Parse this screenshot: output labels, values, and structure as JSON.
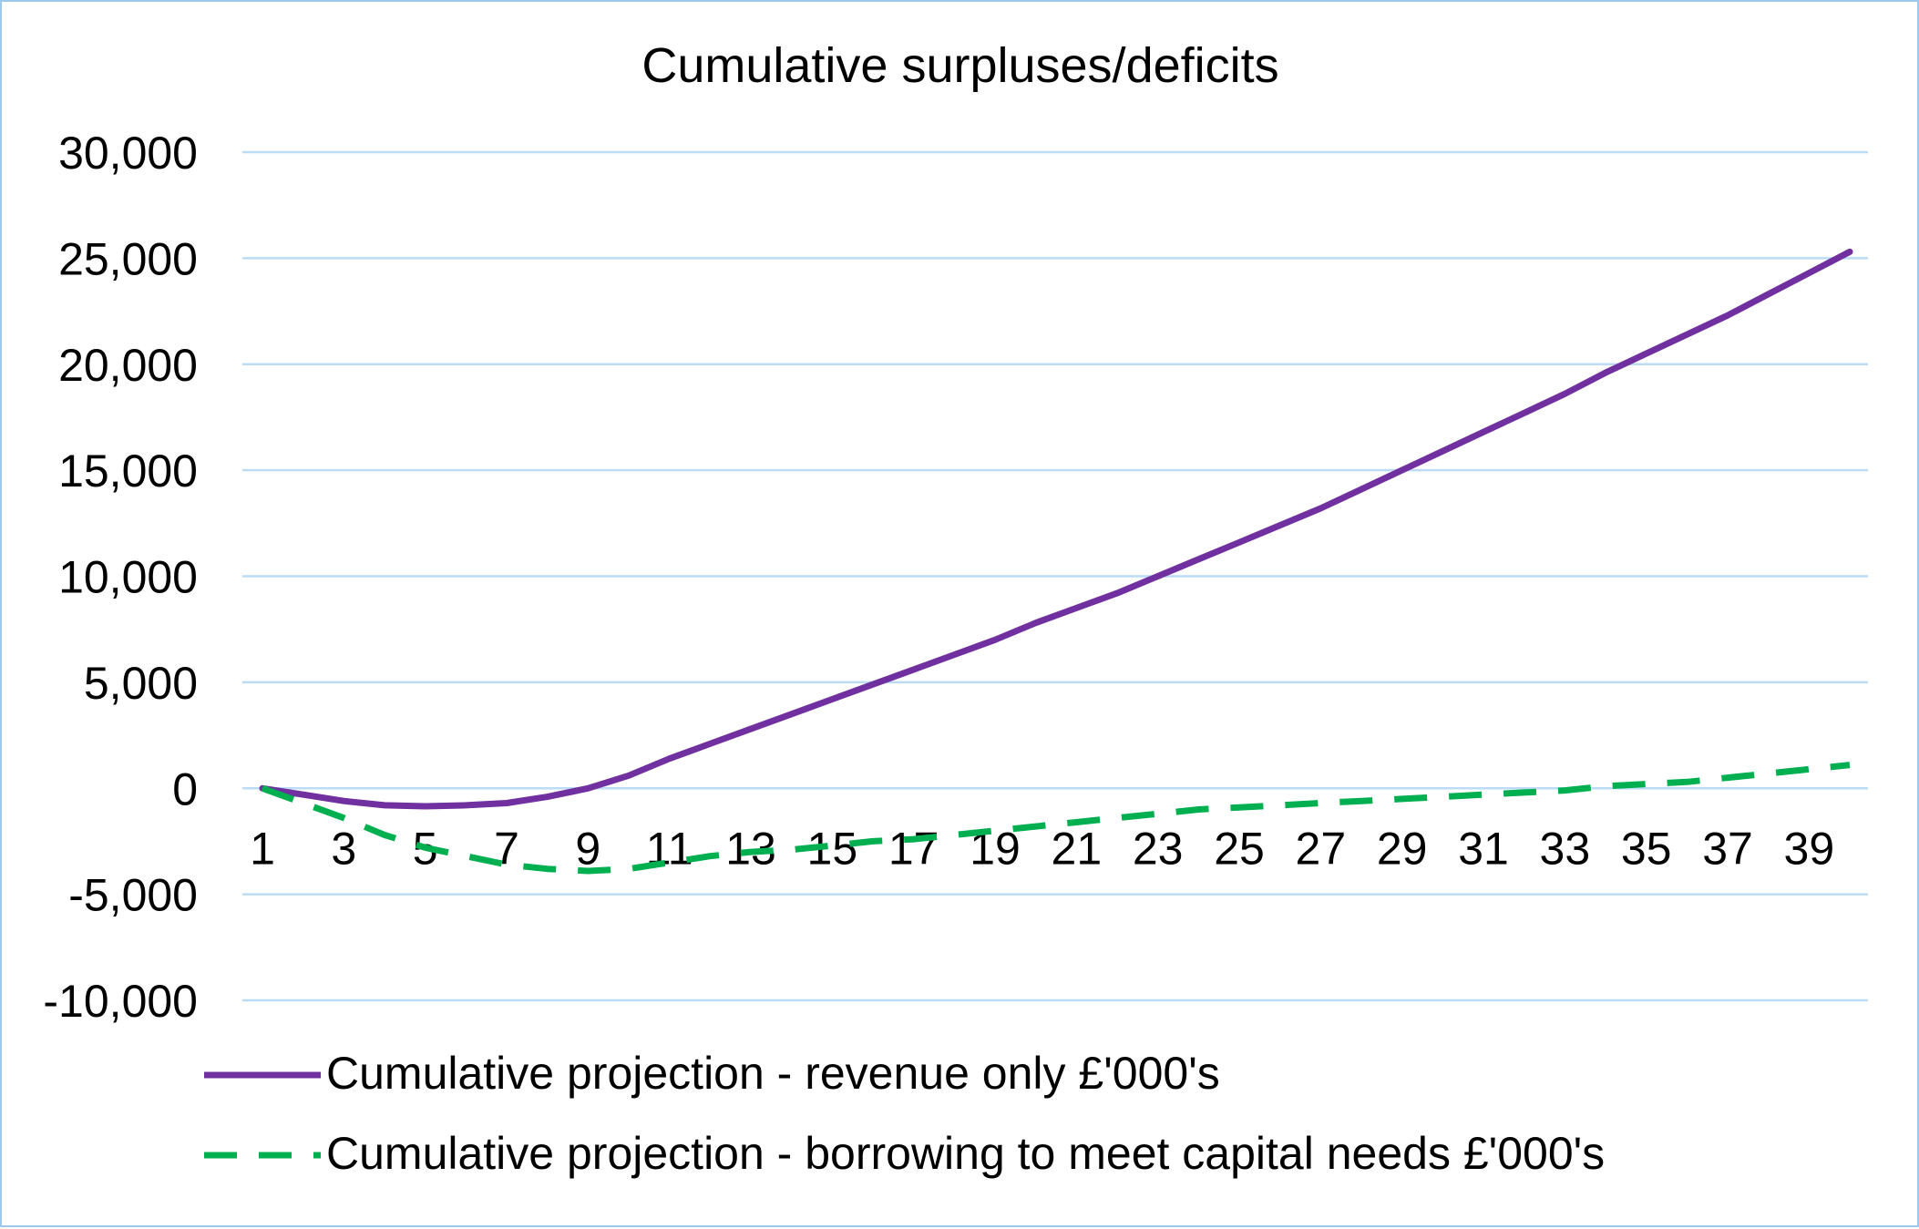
{
  "chart_data": {
    "type": "line",
    "title": "Cumulative surpluses/deficits",
    "xlabel": "",
    "ylabel": "",
    "ylim": [
      -10000,
      30000
    ],
    "yticks": [
      "-10,000",
      "-5,000",
      "0",
      "5,000",
      "10,000",
      "15,000",
      "20,000",
      "25,000",
      "30,000"
    ],
    "ytick_values": [
      -10000,
      -5000,
      0,
      5000,
      10000,
      15000,
      20000,
      25000,
      30000
    ],
    "xticks": [
      "1",
      "3",
      "5",
      "7",
      "9",
      "11",
      "13",
      "15",
      "17",
      "19",
      "21",
      "23",
      "25",
      "27",
      "29",
      "31",
      "33",
      "35",
      "37",
      "39"
    ],
    "x": [
      1,
      2,
      3,
      4,
      5,
      6,
      7,
      8,
      9,
      10,
      11,
      12,
      13,
      14,
      15,
      16,
      17,
      18,
      19,
      20,
      21,
      22,
      23,
      24,
      25,
      26,
      27,
      28,
      29,
      30,
      31,
      32,
      33,
      34,
      35,
      36,
      37,
      38,
      39,
      40
    ],
    "grid": true,
    "legend_position": "bottom",
    "series": [
      {
        "name": "Cumulative projection - revenue only £'000's",
        "color": "#7030a0",
        "style": "solid",
        "values": [
          0,
          -300,
          -600,
          -800,
          -850,
          -800,
          -700,
          -400,
          0,
          600,
          1400,
          2100,
          2800,
          3500,
          4200,
          4900,
          5600,
          6300,
          7000,
          7800,
          8500,
          9200,
          10000,
          10800,
          11600,
          12400,
          13200,
          14100,
          15000,
          15900,
          16800,
          17700,
          18600,
          19600,
          20500,
          21400,
          22300,
          23300,
          24300,
          25300
        ]
      },
      {
        "name": "Cumulative projection - borrowing to meet capital needs £'000's",
        "color": "#00b050",
        "style": "dashed",
        "values": [
          0,
          -700,
          -1400,
          -2200,
          -2800,
          -3200,
          -3600,
          -3800,
          -3900,
          -3800,
          -3500,
          -3200,
          -3000,
          -2900,
          -2700,
          -2500,
          -2400,
          -2200,
          -2000,
          -1800,
          -1600,
          -1400,
          -1200,
          -1000,
          -900,
          -800,
          -700,
          -600,
          -500,
          -400,
          -300,
          -200,
          -100,
          100,
          200,
          300,
          500,
          700,
          900,
          1100
        ]
      }
    ]
  }
}
